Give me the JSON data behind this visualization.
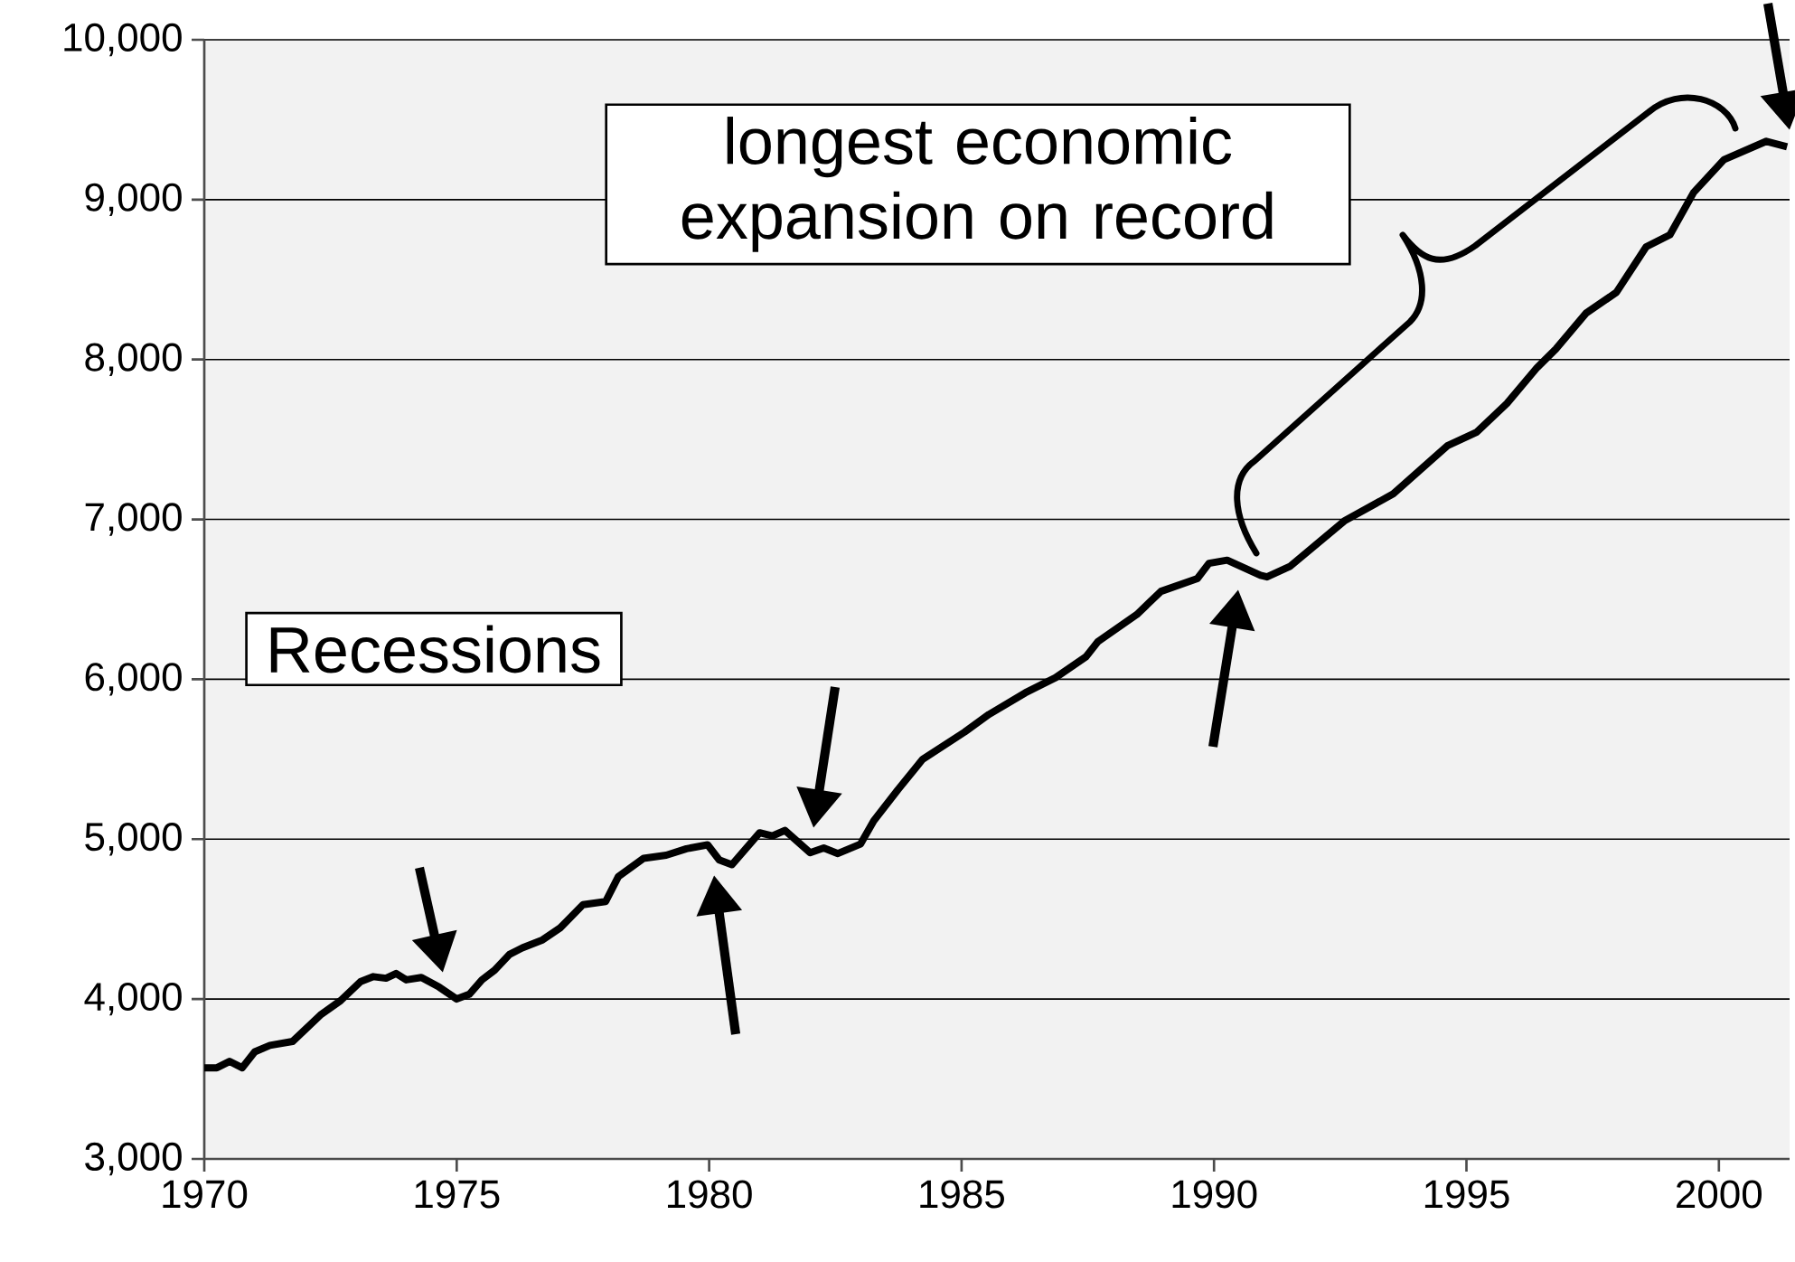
{
  "chart_data": {
    "type": "line",
    "color": "#000000",
    "x": [
      1970.0,
      1970.25,
      1970.5,
      1970.75,
      1971.0,
      1971.3,
      1971.75,
      1972.3,
      1972.7,
      1973.1,
      1973.35,
      1973.6,
      1973.8,
      1974.0,
      1974.3,
      1974.65,
      1975.0,
      1975.25,
      1975.5,
      1975.75,
      1976.05,
      1976.3,
      1976.7,
      1977.05,
      1977.5,
      1977.95,
      1978.2,
      1978.7,
      1979.15,
      1979.55,
      1979.97,
      1980.2,
      1980.45,
      1981.0,
      1981.25,
      1981.5,
      1982.0,
      1982.27,
      1982.55,
      1983.0,
      1983.26,
      1983.74,
      1984.23,
      1985.06,
      1985.54,
      1986.26,
      1986.86,
      1987.46,
      1987.7,
      1988.47,
      1988.95,
      1989.67,
      1989.9,
      1990.26,
      1990.92,
      1991.05,
      1991.5,
      1992.58,
      1993.55,
      1994.62,
      1995.2,
      1995.8,
      1996.4,
      1996.77,
      1997.37,
      1997.97,
      1998.56,
      1999.03,
      1999.5,
      2000.1,
      2000.94,
      2001.35
    ],
    "values": [
      3570,
      3570,
      3610,
      3570,
      3670,
      3710,
      3735,
      3900,
      3990,
      4110,
      4140,
      4130,
      4160,
      4120,
      4135,
      4075,
      4000,
      4030,
      4120,
      4180,
      4280,
      4320,
      4370,
      4445,
      4590,
      4610,
      4765,
      4880,
      4900,
      4940,
      4965,
      4870,
      4840,
      5040,
      5020,
      5055,
      4915,
      4945,
      4910,
      4970,
      5115,
      5310,
      5500,
      5670,
      5780,
      5915,
      6010,
      6140,
      6235,
      6405,
      6550,
      6630,
      6725,
      6745,
      6650,
      6640,
      6705,
      6990,
      7160,
      7460,
      7545,
      7725,
      7950,
      8065,
      8290,
      8420,
      8705,
      8780,
      9045,
      9250,
      9365,
      9330
    ],
    "xlim": [
      1970,
      2001.4
    ],
    "ylim": [
      3000,
      10000
    ],
    "xticks": [
      1970,
      1975,
      1980,
      1985,
      1990,
      1995,
      2000
    ],
    "yticks": [
      {
        "value": 3000,
        "label": "3,000"
      },
      {
        "value": 4000,
        "label": "4,000"
      },
      {
        "value": 5000,
        "label": "5,000"
      },
      {
        "value": 6000,
        "label": "6,000"
      },
      {
        "value": 7000,
        "label": "7,000"
      },
      {
        "value": 8000,
        "label": "8,000"
      },
      {
        "value": 9000,
        "label": "9,000"
      },
      {
        "value": 10000,
        "label": "10,000"
      }
    ],
    "grid": "y",
    "annotations": [
      "longest economic expansion on record",
      "Recessions"
    ]
  }
}
